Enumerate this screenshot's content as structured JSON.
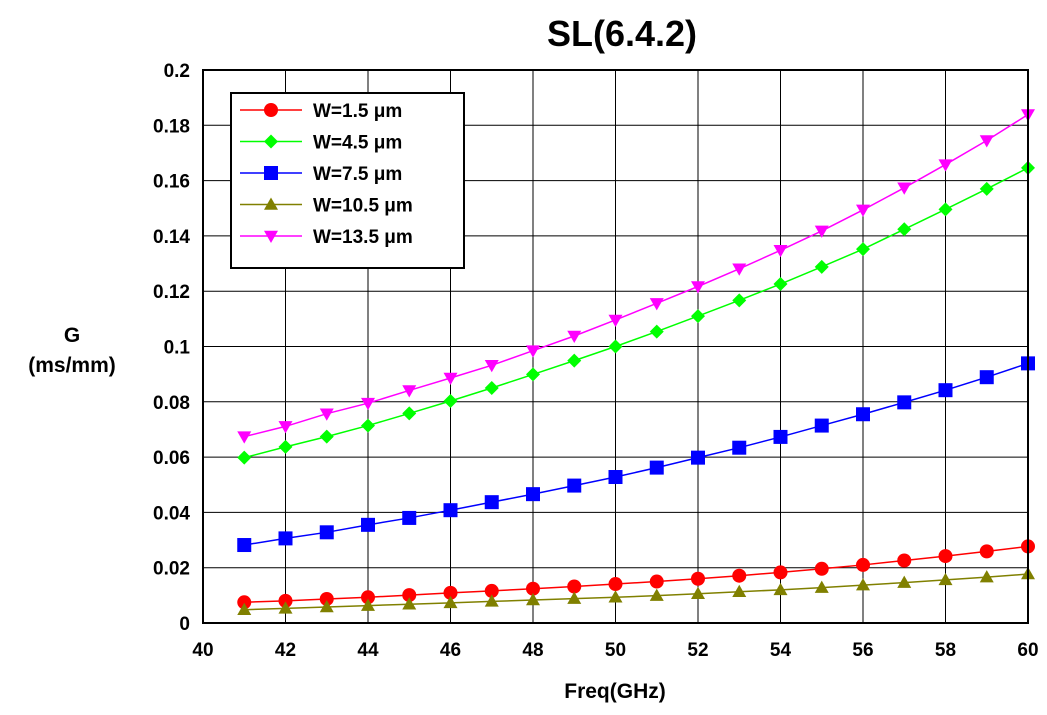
{
  "chart_data": {
    "type": "line",
    "title": "SL(6.4.2)",
    "xlabel": "Freq(GHz)",
    "ylabel_line1": "G",
    "ylabel_line2": "(ms/mm)",
    "xlim": [
      40,
      60
    ],
    "ylim": [
      0,
      0.2
    ],
    "grid": true,
    "legend_position": "top-left",
    "x_ticks": [
      40,
      42,
      44,
      46,
      48,
      50,
      52,
      54,
      56,
      58,
      60
    ],
    "x_tick_labels": [
      "40",
      "42",
      "44",
      "46",
      "48",
      "50",
      "52",
      "54",
      "56",
      "58",
      "60"
    ],
    "y_ticks": [
      0,
      0.02,
      0.04,
      0.06,
      0.08,
      0.1,
      0.12,
      0.14,
      0.16,
      0.18,
      0.2
    ],
    "y_tick_labels": [
      "0",
      "0.02",
      "0.04",
      "0.06",
      "0.08",
      "0.1",
      "0.12",
      "0.14",
      "0.16",
      "0.18",
      "0.2"
    ],
    "x": [
      41,
      42,
      43,
      44,
      45,
      46,
      47,
      48,
      49,
      50,
      51,
      52,
      53,
      54,
      55,
      56,
      57,
      58,
      59,
      60
    ],
    "series": [
      {
        "name": "W=1.5 μm",
        "color": "#ff0000",
        "marker": "circle",
        "values": [
          0.0075,
          0.008,
          0.0087,
          0.0093,
          0.0101,
          0.0109,
          0.0116,
          0.0124,
          0.0132,
          0.0141,
          0.015,
          0.016,
          0.0171,
          0.0183,
          0.0196,
          0.021,
          0.0226,
          0.0242,
          0.0259,
          0.0277
        ]
      },
      {
        "name": "W=4.5 μm",
        "color": "#00ff00",
        "marker": "diamond",
        "values": [
          0.0598,
          0.0637,
          0.0674,
          0.0714,
          0.0758,
          0.0803,
          0.085,
          0.0899,
          0.0949,
          0.1,
          0.1054,
          0.111,
          0.1167,
          0.1226,
          0.1288,
          0.1352,
          0.1424,
          0.1496,
          0.157,
          0.1646
        ]
      },
      {
        "name": "W=7.5 μm",
        "color": "#0000ff",
        "marker": "square",
        "values": [
          0.0282,
          0.0306,
          0.0328,
          0.0355,
          0.038,
          0.0408,
          0.0437,
          0.0466,
          0.0497,
          0.0528,
          0.0562,
          0.0598,
          0.0634,
          0.0673,
          0.0714,
          0.0755,
          0.0798,
          0.0842,
          0.0889,
          0.0939
        ]
      },
      {
        "name": "W=10.5 μm",
        "color": "#808000",
        "marker": "triangle-up",
        "values": [
          0.0048,
          0.0053,
          0.0058,
          0.0063,
          0.0068,
          0.0073,
          0.0078,
          0.0083,
          0.0088,
          0.0093,
          0.0099,
          0.0106,
          0.0113,
          0.012,
          0.0128,
          0.0137,
          0.0146,
          0.0156,
          0.0166,
          0.0177
        ]
      },
      {
        "name": "W=13.5 μm",
        "color": "#ff00ff",
        "marker": "triangle-down",
        "values": [
          0.0674,
          0.0711,
          0.0757,
          0.0795,
          0.0841,
          0.0886,
          0.0932,
          0.0985,
          0.1038,
          0.1096,
          0.1156,
          0.1217,
          0.1281,
          0.1348,
          0.1418,
          0.1494,
          0.1574,
          0.1658,
          0.1745,
          0.1839
        ]
      }
    ]
  }
}
